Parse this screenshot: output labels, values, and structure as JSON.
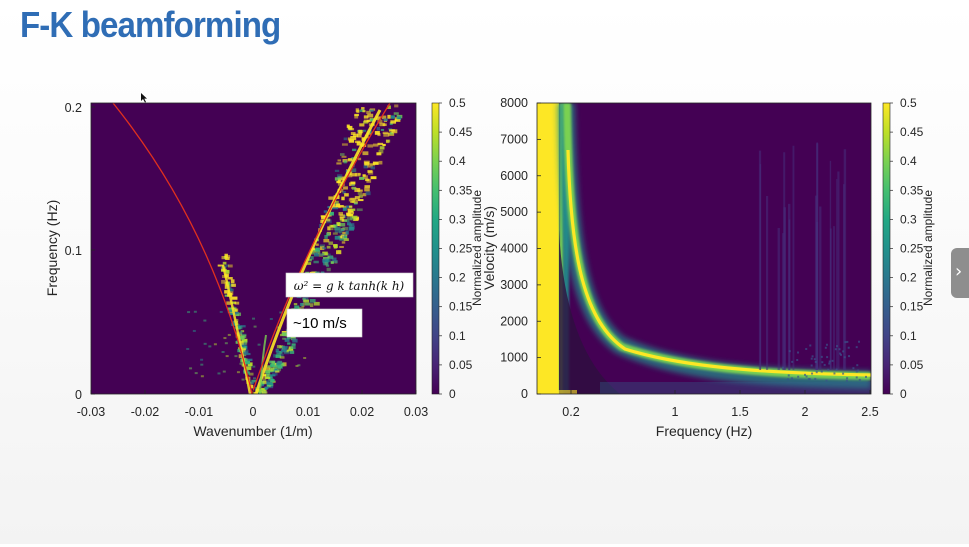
{
  "slide": {
    "title": "F-K beamforming",
    "colors": {
      "title": "#2f6db5",
      "plot_background": "#440154",
      "curve": "#e0301e"
    }
  },
  "chart_data": [
    {
      "type": "heatmap",
      "xlabel": "Wavenumber (1/m)",
      "ylabel": "Frequency (Hz)",
      "xlim": [
        -0.03,
        0.03
      ],
      "ylim": [
        0,
        0.2
      ],
      "x_ticks": [
        "-0.03",
        "-0.02",
        "-0.01",
        "0",
        "0.01",
        "0.02",
        "0.03"
      ],
      "y_ticks": [
        "0",
        "0.1",
        "0.2"
      ],
      "colorbar": {
        "label": "Normalized amplitude",
        "range": [
          0,
          0.5
        ],
        "ticks": [
          "0",
          "0.05",
          "0.1",
          "0.15",
          "0.2",
          "0.25",
          "0.3",
          "0.35",
          "0.4",
          "0.45",
          "0.5"
        ]
      },
      "annotations": {
        "equation": "ω² = g k tanh(k h)",
        "speed": "~10 m/s"
      },
      "curve": "dispersion relation (red)"
    },
    {
      "type": "heatmap",
      "xlabel": "Frequency (Hz)",
      "ylabel": "Velocity (m/s)",
      "xlim": [
        0.1,
        2.5
      ],
      "ylim": [
        0,
        8000
      ],
      "x_ticks": [
        "0.2",
        "1",
        "1.5",
        "2",
        "2.5"
      ],
      "y_ticks": [
        "0",
        "1000",
        "2000",
        "3000",
        "4000",
        "5000",
        "6000",
        "7000",
        "8000"
      ],
      "colorbar": {
        "label": "Normalized amplitude",
        "range": [
          0,
          0.5
        ],
        "ticks": [
          "0",
          "0.05",
          "0.1",
          "0.15",
          "0.2",
          "0.25",
          "0.3",
          "0.35",
          "0.4",
          "0.45",
          "0.5"
        ]
      }
    }
  ]
}
